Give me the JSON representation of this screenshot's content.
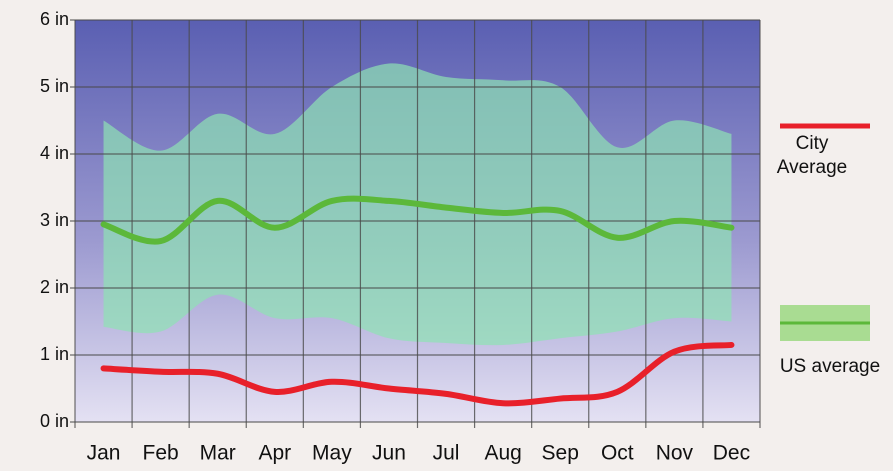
{
  "chart_data": {
    "type": "line",
    "categories": [
      "Jan",
      "Feb",
      "Mar",
      "Apr",
      "May",
      "Jun",
      "Jul",
      "Aug",
      "Sep",
      "Oct",
      "Nov",
      "Dec"
    ],
    "series": [
      {
        "name": "City Average",
        "color": "#e8202a",
        "values": [
          0.8,
          0.75,
          0.72,
          0.45,
          0.6,
          0.5,
          0.42,
          0.28,
          0.35,
          0.45,
          1.05,
          1.15
        ]
      },
      {
        "name": "US average",
        "color": "#5cb83a",
        "range_color": "#8fe3b4",
        "values": [
          2.95,
          2.7,
          3.3,
          2.9,
          3.3,
          3.3,
          3.2,
          3.12,
          3.15,
          2.75,
          3.0,
          2.9
        ],
        "range_low": [
          1.42,
          1.35,
          1.9,
          1.55,
          1.55,
          1.25,
          1.18,
          1.15,
          1.25,
          1.35,
          1.55,
          1.5
        ],
        "range_high": [
          4.5,
          4.05,
          4.6,
          4.3,
          5.0,
          5.35,
          5.15,
          5.1,
          5.0,
          4.1,
          4.5,
          4.3
        ]
      }
    ],
    "ylim": [
      0,
      6
    ],
    "yticks": [
      {
        "value": 0,
        "label": "0 in"
      },
      {
        "value": 1,
        "label": "1 in"
      },
      {
        "value": 2,
        "label": "2 in"
      },
      {
        "value": 3,
        "label": "3 in"
      },
      {
        "value": 4,
        "label": "4 in"
      },
      {
        "value": 5,
        "label": "5 in"
      },
      {
        "value": 6,
        "label": "6 in"
      }
    ],
    "grid": true,
    "legend": "right"
  }
}
